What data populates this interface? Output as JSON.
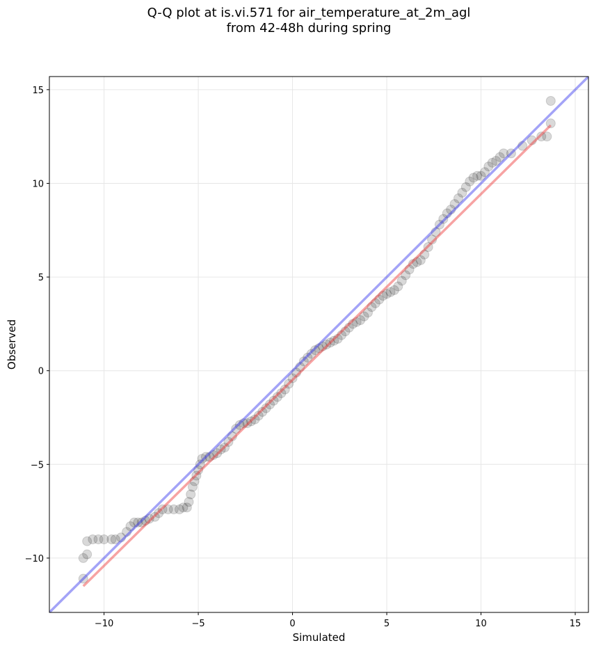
{
  "title_line1": "Q-Q plot at is.vi.571 for air_temperature_at_2m_agl",
  "title_line2": "from 42-48h during spring",
  "chart_data": {
    "type": "scatter",
    "xlabel": "Simulated",
    "ylabel": "Observed",
    "xlim": [
      -12.9,
      15.7
    ],
    "ylim": [
      -12.9,
      15.7
    ],
    "xticks": [
      -10,
      -5,
      0,
      5,
      10,
      15
    ],
    "yticks": [
      -10,
      -5,
      0,
      5,
      10,
      15
    ],
    "xtick_labels": [
      "−10",
      "−5",
      "0",
      "5",
      "10",
      "15"
    ],
    "ytick_labels": [
      "−10",
      "−5",
      "0",
      "5",
      "10",
      "15"
    ],
    "grid": true,
    "colors": {
      "points": "#000000",
      "identity_line": "#3333ee",
      "fit_line": "#ee3333",
      "grid": "#e6e6e6"
    },
    "identity_line": {
      "x": [
        -12.9,
        15.7
      ],
      "y": [
        -12.9,
        15.7
      ]
    },
    "fit_line": {
      "x": [
        -11.1,
        13.7
      ],
      "y": [
        -11.5,
        13.1
      ]
    },
    "points": [
      [
        -11.1,
        -11.1
      ],
      [
        -11.1,
        -10.0
      ],
      [
        -10.9,
        -9.8
      ],
      [
        -10.9,
        -9.1
      ],
      [
        -10.6,
        -9.0
      ],
      [
        -10.3,
        -9.0
      ],
      [
        -10.0,
        -9.0
      ],
      [
        -9.6,
        -9.0
      ],
      [
        -9.4,
        -9.0
      ],
      [
        -9.1,
        -8.9
      ],
      [
        -8.8,
        -8.6
      ],
      [
        -8.6,
        -8.3
      ],
      [
        -8.4,
        -8.1
      ],
      [
        -8.2,
        -8.1
      ],
      [
        -8.0,
        -8.1
      ],
      [
        -7.8,
        -8.0
      ],
      [
        -7.6,
        -7.9
      ],
      [
        -7.3,
        -7.8
      ],
      [
        -7.1,
        -7.6
      ],
      [
        -6.9,
        -7.4
      ],
      [
        -6.6,
        -7.4
      ],
      [
        -6.3,
        -7.4
      ],
      [
        -6.0,
        -7.4
      ],
      [
        -5.8,
        -7.3
      ],
      [
        -5.6,
        -7.3
      ],
      [
        -5.5,
        -7.0
      ],
      [
        -5.4,
        -6.6
      ],
      [
        -5.3,
        -6.2
      ],
      [
        -5.2,
        -5.9
      ],
      [
        -5.1,
        -5.6
      ],
      [
        -5.0,
        -5.3
      ],
      [
        -4.9,
        -5.0
      ],
      [
        -4.8,
        -4.7
      ],
      [
        -4.6,
        -4.6
      ],
      [
        -4.4,
        -4.6
      ],
      [
        -4.2,
        -4.5
      ],
      [
        -4.0,
        -4.4
      ],
      [
        -3.8,
        -4.2
      ],
      [
        -3.6,
        -4.1
      ],
      [
        -3.4,
        -3.8
      ],
      [
        -3.2,
        -3.5
      ],
      [
        -3.0,
        -3.1
      ],
      [
        -2.8,
        -2.9
      ],
      [
        -2.6,
        -2.8
      ],
      [
        -2.4,
        -2.8
      ],
      [
        -2.2,
        -2.7
      ],
      [
        -2.0,
        -2.6
      ],
      [
        -1.8,
        -2.4
      ],
      [
        -1.6,
        -2.2
      ],
      [
        -1.4,
        -2.0
      ],
      [
        -1.2,
        -1.8
      ],
      [
        -1.0,
        -1.6
      ],
      [
        -0.8,
        -1.4
      ],
      [
        -0.6,
        -1.2
      ],
      [
        -0.4,
        -1.0
      ],
      [
        -0.2,
        -0.7
      ],
      [
        0.0,
        -0.4
      ],
      [
        0.2,
        -0.1
      ],
      [
        0.4,
        0.2
      ],
      [
        0.6,
        0.5
      ],
      [
        0.8,
        0.7
      ],
      [
        1.0,
        0.9
      ],
      [
        1.2,
        1.1
      ],
      [
        1.4,
        1.2
      ],
      [
        1.6,
        1.3
      ],
      [
        1.8,
        1.4
      ],
      [
        2.0,
        1.5
      ],
      [
        2.2,
        1.6
      ],
      [
        2.4,
        1.7
      ],
      [
        2.6,
        1.9
      ],
      [
        2.8,
        2.1
      ],
      [
        3.0,
        2.3
      ],
      [
        3.2,
        2.5
      ],
      [
        3.4,
        2.6
      ],
      [
        3.6,
        2.7
      ],
      [
        3.8,
        2.9
      ],
      [
        4.0,
        3.1
      ],
      [
        4.2,
        3.4
      ],
      [
        4.4,
        3.6
      ],
      [
        4.6,
        3.8
      ],
      [
        4.8,
        4.0
      ],
      [
        5.0,
        4.1
      ],
      [
        5.2,
        4.2
      ],
      [
        5.4,
        4.3
      ],
      [
        5.6,
        4.5
      ],
      [
        5.8,
        4.8
      ],
      [
        6.0,
        5.1
      ],
      [
        6.2,
        5.4
      ],
      [
        6.4,
        5.7
      ],
      [
        6.6,
        5.8
      ],
      [
        6.8,
        5.9
      ],
      [
        7.0,
        6.2
      ],
      [
        7.2,
        6.6
      ],
      [
        7.4,
        7.0
      ],
      [
        7.6,
        7.4
      ],
      [
        7.8,
        7.8
      ],
      [
        8.0,
        8.1
      ],
      [
        8.2,
        8.4
      ],
      [
        8.4,
        8.6
      ],
      [
        8.6,
        8.9
      ],
      [
        8.8,
        9.2
      ],
      [
        9.0,
        9.5
      ],
      [
        9.2,
        9.8
      ],
      [
        9.4,
        10.1
      ],
      [
        9.6,
        10.3
      ],
      [
        9.8,
        10.4
      ],
      [
        10.0,
        10.4
      ],
      [
        10.2,
        10.6
      ],
      [
        10.4,
        10.9
      ],
      [
        10.6,
        11.1
      ],
      [
        10.8,
        11.2
      ],
      [
        11.0,
        11.4
      ],
      [
        11.2,
        11.6
      ],
      [
        11.6,
        11.6
      ],
      [
        12.2,
        12.0
      ],
      [
        12.7,
        12.3
      ],
      [
        13.2,
        12.5
      ],
      [
        13.5,
        12.5
      ],
      [
        13.7,
        13.2
      ],
      [
        13.7,
        14.4
      ]
    ]
  }
}
